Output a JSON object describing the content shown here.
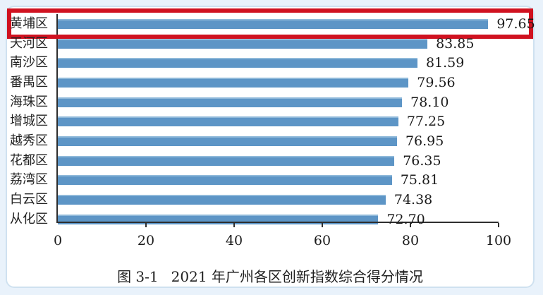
{
  "figure": {
    "caption_prefix": "图 3-1",
    "caption_text": "2021 年广州各区创新指数综合得分情况"
  },
  "highlight": {
    "row_index": 0,
    "row_category": "黄埔区",
    "color": "#d01220"
  },
  "colors": {
    "bar": "#5d95c6",
    "background": "#e9f2fb",
    "panel": "#ffffff",
    "axis": "#2e2e2e"
  },
  "chart_data": {
    "type": "bar",
    "orientation": "horizontal",
    "title": "图 3-1 2021 年广州各区创新指数综合得分情况",
    "xlabel": "",
    "ylabel": "",
    "xlim": [
      0,
      100
    ],
    "x_ticks": [
      0,
      20,
      40,
      60,
      80,
      100
    ],
    "grid": false,
    "legend": false,
    "categories": [
      "黄埔区",
      "天河区",
      "南沙区",
      "番禺区",
      "海珠区",
      "增城区",
      "越秀区",
      "花都区",
      "荔湾区",
      "白云区",
      "从化区"
    ],
    "values": [
      97.65,
      83.85,
      81.59,
      79.56,
      78.1,
      77.25,
      76.95,
      76.35,
      75.81,
      74.38,
      72.7
    ],
    "value_labels": [
      "97.65",
      "83.85",
      "81.59",
      "79.56",
      "78.10",
      "77.25",
      "76.95",
      "76.35",
      "75.81",
      "74.38",
      "72.70"
    ]
  }
}
